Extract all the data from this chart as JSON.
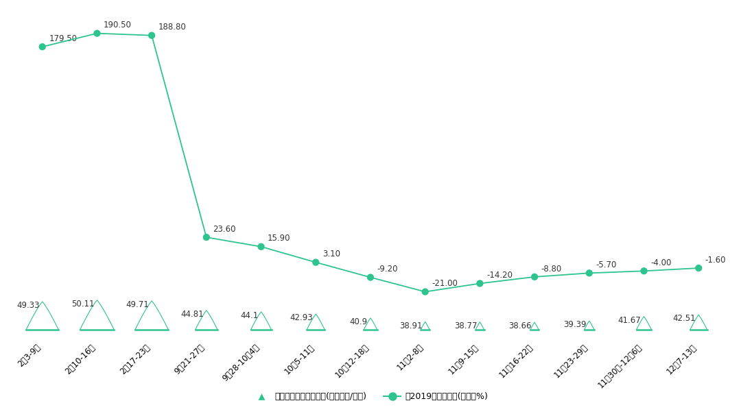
{
  "categories": [
    "2月3-9日",
    "2月10-16日",
    "2月17-23日",
    "9月21-27日",
    "9月28-10月4日",
    "10月5-11日",
    "10月12-18日",
    "11月2-8日",
    "11月9-15日",
    "11月16-22日",
    "11月23-29日",
    "11月30日-12月6日",
    "12月7-13日"
  ],
  "prices": [
    49.33,
    50.11,
    49.71,
    44.81,
    44.1,
    42.93,
    40.9,
    38.91,
    38.77,
    38.66,
    39.39,
    41.67,
    42.51
  ],
  "yoy": [
    179.5,
    190.5,
    188.8,
    23.6,
    15.9,
    3.1,
    -9.2,
    -21.0,
    -14.2,
    -8.8,
    -5.7,
    -4.0,
    -1.6
  ],
  "spike_color": "#2dc48d",
  "line_color": "#2dc48d",
  "dot_color": "#2dc48d",
  "bg_color": "#ffffff",
  "text_color": "#333333",
  "legend_price_label": "全国猪肉平均出厂价格(单位：元/公斑)",
  "legend_yoy_label": "比2019年同期涨跌(单位：%)",
  "figsize": [
    10.8,
    6.01
  ],
  "dpi": 100,
  "yoy_label_format": [
    "179.50",
    "190.50",
    "188.80",
    "23.60",
    "15.90",
    "3.10",
    "-9.20",
    "-21.00",
    "-14.20",
    "-8.80",
    "-5.70",
    "-4.00",
    "-1.60"
  ],
  "price_label_format": [
    "49.33",
    "50.11",
    "49.71",
    "44.81",
    "44.1",
    "42.93",
    "40.9",
    "38.91",
    "38.77",
    "38.66",
    "39.39",
    "41.67",
    "42.51"
  ]
}
